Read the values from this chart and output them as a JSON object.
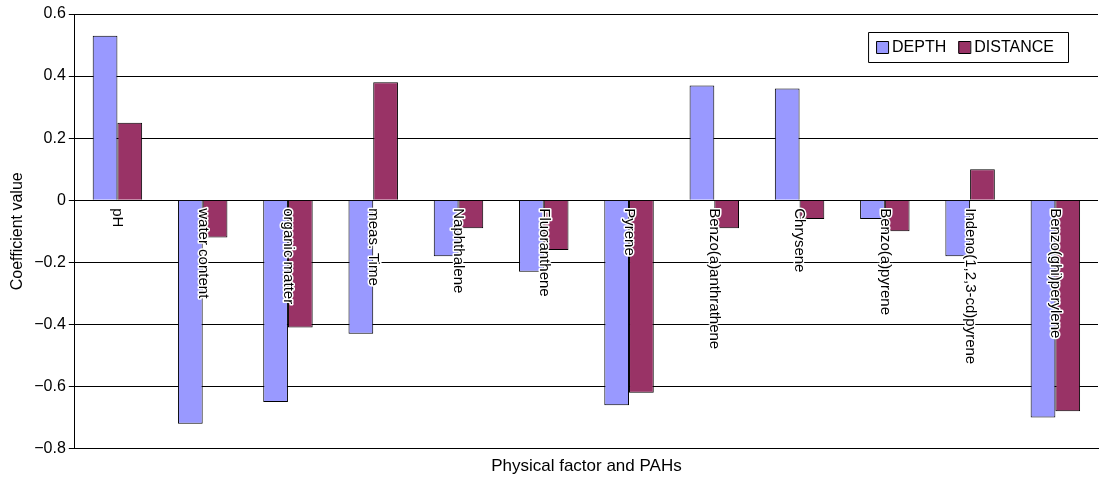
{
  "chart_data": {
    "type": "bar",
    "xlabel": "Physical factor and PAHs",
    "ylabel": "Coefficient value",
    "categories": [
      "pH",
      "water content",
      "organic matter",
      "meas. Time",
      "Naphthalene",
      "Fluoranthene",
      "Pyrene",
      "Benzo(a)anthrathene",
      "Chrysene",
      "Benzo(a)pyrene",
      "Indeno(1,2,3-cd)pyrene",
      "Benzo(ghi)perylene"
    ],
    "series": [
      {
        "name": "DEPTH",
        "color": "#9999ff",
        "values": [
          0.53,
          -0.72,
          -0.65,
          -0.43,
          -0.18,
          -0.23,
          -0.66,
          0.37,
          0.36,
          -0.06,
          -0.18,
          -0.7
        ]
      },
      {
        "name": "DISTANCE",
        "color": "#993366",
        "values": [
          0.25,
          -0.12,
          -0.41,
          0.38,
          -0.09,
          -0.16,
          -0.62,
          -0.09,
          -0.06,
          -0.1,
          0.1,
          -0.68
        ]
      }
    ],
    "ylim": [
      -0.8,
      0.6
    ],
    "yticks": [
      -0.8,
      -0.6,
      -0.4,
      -0.2,
      0,
      0.2,
      0.4,
      0.6
    ],
    "grid": "y",
    "legend": "top right",
    "tick_labels": "y"
  }
}
